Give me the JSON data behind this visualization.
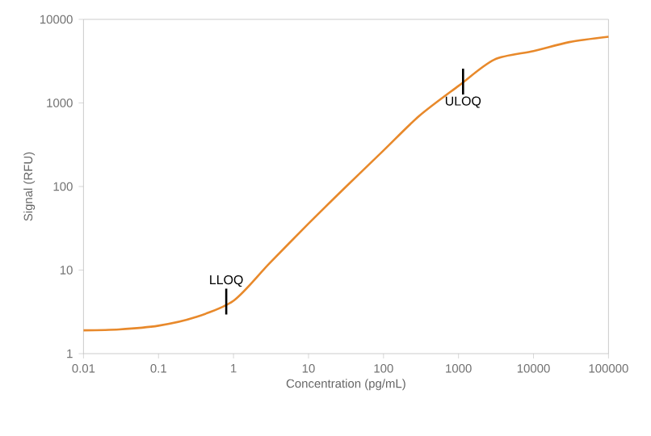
{
  "chart_data": {
    "type": "line",
    "xlabel": "Concentration (pg/mL)",
    "ylabel": "Signal (RFU)",
    "log": "xy",
    "grid": false,
    "marker": "none",
    "line_style": "solid",
    "x": [
      0.01,
      0.03,
      0.1,
      0.3,
      1,
      3,
      10,
      30,
      100,
      300,
      1000,
      3000,
      10000,
      30000,
      100000
    ],
    "series": [
      {
        "color": "#e8892b",
        "values": [
          1.9,
          1.95,
          2.16,
          2.7,
          4.3,
          12,
          36,
          95,
          270,
          700,
          1600,
          3300,
          4170,
          5350,
          6200
        ]
      }
    ],
    "xlim": [
      0.01,
      100000
    ],
    "ylim": [
      1,
      10000
    ],
    "xticks": [
      0.01,
      0.1,
      1,
      10,
      100,
      1000,
      10000,
      100000
    ],
    "yticks": [
      1,
      10,
      100,
      1000,
      10000
    ],
    "annotations": [
      {
        "text": "LLOQ",
        "x": 0.8,
        "y": 4.2
      },
      {
        "text": "ULOQ",
        "x": 1150,
        "y": 1800
      }
    ]
  }
}
